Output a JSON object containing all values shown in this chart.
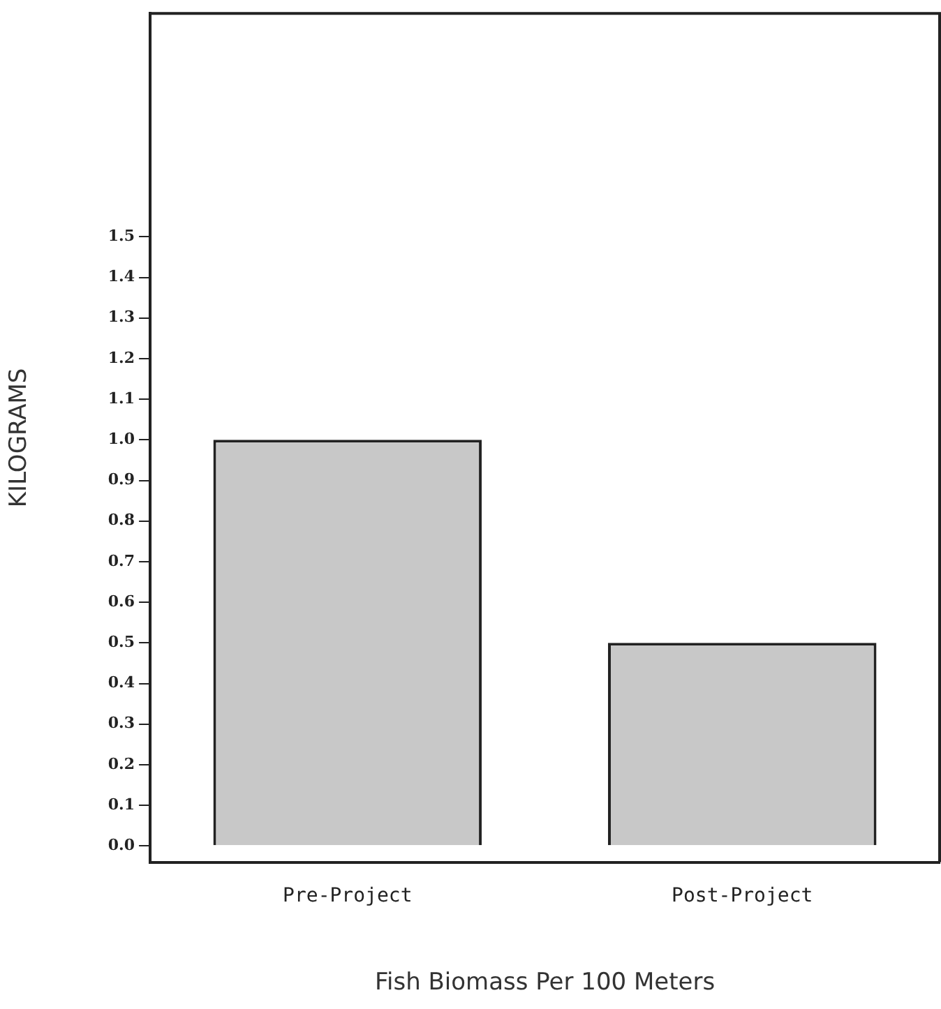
{
  "chart_data": {
    "type": "bar",
    "xlabel": "Fish Biomass Per 100 Meters",
    "ylabel": "KILOGRAMS",
    "categories": [
      "Pre-Project",
      "Post-Project"
    ],
    "values": [
      1.0,
      0.5
    ],
    "color": "#c8c8c8",
    "ylim": [
      -0.04,
      2.05
    ],
    "yticks": [
      {
        "value": 0,
        "label": "0.0"
      },
      {
        "value": 0.1,
        "label": "0.1"
      },
      {
        "value": 0.2,
        "label": "0.2"
      },
      {
        "value": 0.3,
        "label": "0.3"
      },
      {
        "value": 0.4,
        "label": "0.4"
      },
      {
        "value": 0.5,
        "label": "0.5"
      },
      {
        "value": 0.6,
        "label": "0.6"
      },
      {
        "value": 0.7,
        "label": "0.7"
      },
      {
        "value": 0.8,
        "label": "0.8"
      },
      {
        "value": 0.9,
        "label": "0.9"
      },
      {
        "value": 1.0,
        "label": "1.0"
      },
      {
        "value": 1.1,
        "label": "1.1"
      },
      {
        "value": 1.2,
        "label": "1.2"
      },
      {
        "value": 1.3,
        "label": "1.3"
      },
      {
        "value": 1.4,
        "label": "1.4"
      },
      {
        "value": 1.5,
        "label": "1.5"
      }
    ],
    "grid": false,
    "legend": false
  }
}
